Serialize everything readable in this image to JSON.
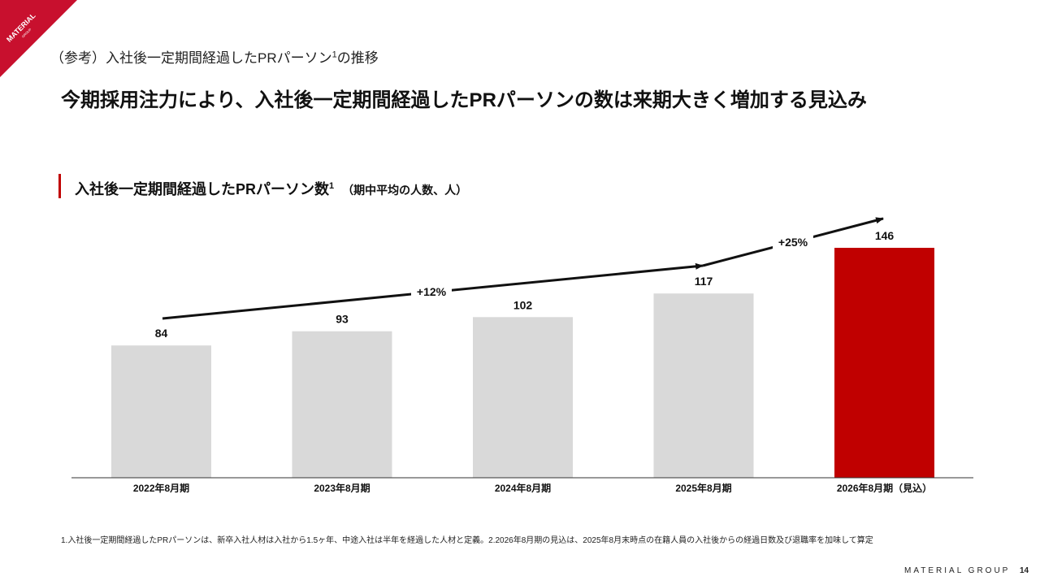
{
  "logo": {
    "name": "MATERIAL",
    "sub": "GROUP",
    "color": "#c8102e"
  },
  "ref_title": {
    "prefix": "（参考）入社後一定期間経過したPRパーソン",
    "sup": "1",
    "suffix": "の推移"
  },
  "main_title": "今期採用注力により、入社後一定期間経過したPRパーソンの数は来期大きく増加する見込み",
  "section": {
    "title": "入社後一定期間経過したPRパーソン数",
    "sup": "1",
    "subtitle": "（期中平均の人数、人）"
  },
  "chart_data": {
    "type": "bar",
    "categories": [
      "2022年8月期",
      "2023年8月期",
      "2024年8月期",
      "2025年8月期",
      "2026年8月期（見込）"
    ],
    "values": [
      84,
      93,
      102,
      117,
      146
    ],
    "ylim": [
      0,
      160
    ],
    "grid": false,
    "bar_colors": [
      "#d9d9d9",
      "#d9d9d9",
      "#d9d9d9",
      "#d9d9d9",
      "#c00000"
    ],
    "annotations": [
      {
        "label": "+12%",
        "from": 0,
        "to": 3
      },
      {
        "label": "+25%",
        "from": 3,
        "to": 4
      }
    ]
  },
  "footnote": "1.入社後一定期間経過したPRパーソンは、新卒入社人材は入社から1.5ヶ年、中途入社は半年を経過した人材と定義。2.2026年8月期の見込は、2025年8月末時点の在籍人員の入社後からの経過日数及び退職率を加味して算定",
  "footer": {
    "brand": "MATERIAL GROUP",
    "page": "14"
  }
}
